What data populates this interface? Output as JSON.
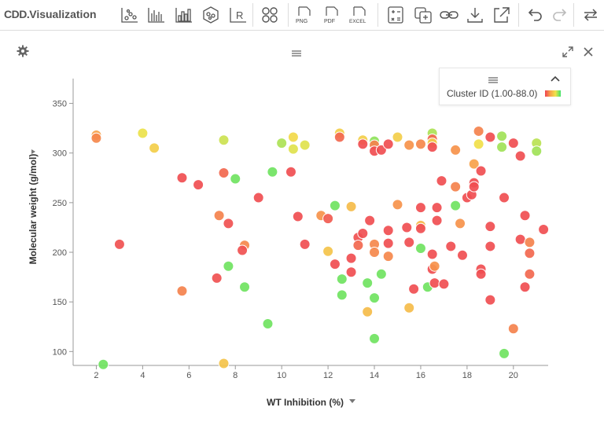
{
  "app": {
    "brand": "CDD.",
    "title": "Visualization"
  },
  "toolbar": {
    "icons": [
      "scatter-plot-icon",
      "bar-chart-icon",
      "histogram-icon",
      "molecule-icon",
      "r-script-icon",
      "cluster-icon",
      "png-export-icon",
      "pdf-export-icon",
      "excel-export-icon",
      "calculator-icon",
      "add-copy-icon",
      "link-icon",
      "download-icon",
      "open-external-icon",
      "undo-icon",
      "redo-icon",
      "refresh-icon"
    ],
    "r_label": "R",
    "png_label": "PNG",
    "pdf_label": "PDF",
    "excel_label": "EXCEL"
  },
  "legend": {
    "label": "Cluster ID (1.00-88.0)",
    "gradient": [
      "#ef4452",
      "#f7a24a",
      "#f1e24a",
      "#3fe36a"
    ]
  },
  "chart_data": {
    "type": "scatter",
    "xlabel": "WT Inhibition (%)",
    "ylabel": "Molecular weight (g/mol)",
    "xlim": [
      1,
      21.5
    ],
    "ylim": [
      86,
      375
    ],
    "xticks": [
      2,
      4,
      6,
      8,
      10,
      12,
      14,
      16,
      18,
      20
    ],
    "yticks": [
      100,
      150,
      200,
      250,
      300,
      350
    ],
    "color_scale": {
      "label": "Cluster ID",
      "range": [
        1,
        88
      ],
      "colors": [
        "#ef4452",
        "#f7a24a",
        "#f1e24a",
        "#3fe36a"
      ]
    },
    "points": [
      {
        "x": 2.0,
        "y": 318,
        "c": 30
      },
      {
        "x": 2.0,
        "y": 315,
        "c": 22
      },
      {
        "x": 2.3,
        "y": 87,
        "c": 80
      },
      {
        "x": 3.0,
        "y": 208,
        "c": 5
      },
      {
        "x": 4.0,
        "y": 320,
        "c": 60
      },
      {
        "x": 4.5,
        "y": 305,
        "c": 50
      },
      {
        "x": 5.7,
        "y": 275,
        "c": 4
      },
      {
        "x": 5.7,
        "y": 161,
        "c": 20
      },
      {
        "x": 6.4,
        "y": 268,
        "c": 4
      },
      {
        "x": 7.3,
        "y": 237,
        "c": 20
      },
      {
        "x": 7.2,
        "y": 174,
        "c": 5
      },
      {
        "x": 7.5,
        "y": 313,
        "c": 65
      },
      {
        "x": 7.5,
        "y": 280,
        "c": 12
      },
      {
        "x": 7.5,
        "y": 88,
        "c": 45
      },
      {
        "x": 7.7,
        "y": 229,
        "c": 5
      },
      {
        "x": 7.7,
        "y": 186,
        "c": 80
      },
      {
        "x": 8.0,
        "y": 274,
        "c": 80
      },
      {
        "x": 8.4,
        "y": 207,
        "c": 22
      },
      {
        "x": 8.3,
        "y": 202,
        "c": 5
      },
      {
        "x": 8.4,
        "y": 165,
        "c": 80
      },
      {
        "x": 9.0,
        "y": 255,
        "c": 4
      },
      {
        "x": 9.4,
        "y": 128,
        "c": 80
      },
      {
        "x": 9.6,
        "y": 281,
        "c": 80
      },
      {
        "x": 10.0,
        "y": 310,
        "c": 70
      },
      {
        "x": 10.4,
        "y": 281,
        "c": 4
      },
      {
        "x": 10.5,
        "y": 316,
        "c": 55
      },
      {
        "x": 10.5,
        "y": 304,
        "c": 62
      },
      {
        "x": 10.7,
        "y": 236,
        "c": 4
      },
      {
        "x": 11.0,
        "y": 308,
        "c": 62
      },
      {
        "x": 11.0,
        "y": 208,
        "c": 4
      },
      {
        "x": 11.7,
        "y": 237,
        "c": 25
      },
      {
        "x": 12.0,
        "y": 234,
        "c": 8
      },
      {
        "x": 12.0,
        "y": 201,
        "c": 45
      },
      {
        "x": 12.3,
        "y": 247,
        "c": 80
      },
      {
        "x": 12.3,
        "y": 188,
        "c": 4
      },
      {
        "x": 12.5,
        "y": 320,
        "c": 50
      },
      {
        "x": 12.5,
        "y": 316,
        "c": 12
      },
      {
        "x": 12.6,
        "y": 173,
        "c": 80
      },
      {
        "x": 12.6,
        "y": 157,
        "c": 80
      },
      {
        "x": 13.0,
        "y": 246,
        "c": 42
      },
      {
        "x": 13.0,
        "y": 194,
        "c": 4
      },
      {
        "x": 13.0,
        "y": 180,
        "c": 4
      },
      {
        "x": 13.3,
        "y": 215,
        "c": 5
      },
      {
        "x": 13.3,
        "y": 207,
        "c": 12
      },
      {
        "x": 13.5,
        "y": 219,
        "c": 4
      },
      {
        "x": 13.5,
        "y": 313,
        "c": 50
      },
      {
        "x": 13.5,
        "y": 309,
        "c": 4
      },
      {
        "x": 13.7,
        "y": 169,
        "c": 80
      },
      {
        "x": 13.7,
        "y": 140,
        "c": 42
      },
      {
        "x": 13.8,
        "y": 232,
        "c": 4
      },
      {
        "x": 14.0,
        "y": 312,
        "c": 75
      },
      {
        "x": 14.0,
        "y": 308,
        "c": 20
      },
      {
        "x": 14.0,
        "y": 302,
        "c": 4
      },
      {
        "x": 14.0,
        "y": 208,
        "c": 22
      },
      {
        "x": 14.0,
        "y": 200,
        "c": 22
      },
      {
        "x": 14.0,
        "y": 154,
        "c": 80
      },
      {
        "x": 14.0,
        "y": 113,
        "c": 80
      },
      {
        "x": 14.3,
        "y": 303,
        "c": 4
      },
      {
        "x": 14.3,
        "y": 178,
        "c": 80
      },
      {
        "x": 14.6,
        "y": 309,
        "c": 4
      },
      {
        "x": 14.6,
        "y": 222,
        "c": 4
      },
      {
        "x": 14.6,
        "y": 209,
        "c": 4
      },
      {
        "x": 14.6,
        "y": 196,
        "c": 22
      },
      {
        "x": 15.0,
        "y": 316,
        "c": 50
      },
      {
        "x": 15.0,
        "y": 248,
        "c": 25
      },
      {
        "x": 15.4,
        "y": 225,
        "c": 4
      },
      {
        "x": 15.5,
        "y": 308,
        "c": 25
      },
      {
        "x": 15.5,
        "y": 210,
        "c": 4
      },
      {
        "x": 15.5,
        "y": 144,
        "c": 42
      },
      {
        "x": 15.7,
        "y": 163,
        "c": 4
      },
      {
        "x": 16.0,
        "y": 309,
        "c": 22
      },
      {
        "x": 16.0,
        "y": 245,
        "c": 4
      },
      {
        "x": 16.0,
        "y": 227,
        "c": 40
      },
      {
        "x": 16.0,
        "y": 224,
        "c": 4
      },
      {
        "x": 16.0,
        "y": 204,
        "c": 80
      },
      {
        "x": 16.3,
        "y": 165,
        "c": 80
      },
      {
        "x": 16.5,
        "y": 320,
        "c": 70
      },
      {
        "x": 16.5,
        "y": 314,
        "c": 12
      },
      {
        "x": 16.5,
        "y": 310,
        "c": 50
      },
      {
        "x": 16.5,
        "y": 306,
        "c": 4
      },
      {
        "x": 16.5,
        "y": 198,
        "c": 4
      },
      {
        "x": 16.5,
        "y": 183,
        "c": 4
      },
      {
        "x": 16.6,
        "y": 186,
        "c": 25
      },
      {
        "x": 16.6,
        "y": 169,
        "c": 4
      },
      {
        "x": 16.7,
        "y": 245,
        "c": 4
      },
      {
        "x": 16.7,
        "y": 232,
        "c": 4
      },
      {
        "x": 16.9,
        "y": 272,
        "c": 4
      },
      {
        "x": 17.0,
        "y": 168,
        "c": 4
      },
      {
        "x": 17.3,
        "y": 206,
        "c": 4
      },
      {
        "x": 17.5,
        "y": 303,
        "c": 25
      },
      {
        "x": 17.5,
        "y": 266,
        "c": 20
      },
      {
        "x": 17.5,
        "y": 247,
        "c": 80
      },
      {
        "x": 17.7,
        "y": 229,
        "c": 25
      },
      {
        "x": 17.8,
        "y": 197,
        "c": 4
      },
      {
        "x": 18.0,
        "y": 255,
        "c": 4
      },
      {
        "x": 18.2,
        "y": 258,
        "c": 4
      },
      {
        "x": 18.3,
        "y": 289,
        "c": 30
      },
      {
        "x": 18.3,
        "y": 270,
        "c": 4
      },
      {
        "x": 18.3,
        "y": 266,
        "c": 4
      },
      {
        "x": 18.5,
        "y": 322,
        "c": 20
      },
      {
        "x": 18.5,
        "y": 309,
        "c": 58
      },
      {
        "x": 18.6,
        "y": 282,
        "c": 4
      },
      {
        "x": 18.6,
        "y": 183,
        "c": 4
      },
      {
        "x": 18.6,
        "y": 178,
        "c": 4
      },
      {
        "x": 19.0,
        "y": 316,
        "c": 4
      },
      {
        "x": 19.0,
        "y": 226,
        "c": 4
      },
      {
        "x": 19.0,
        "y": 206,
        "c": 4
      },
      {
        "x": 19.0,
        "y": 152,
        "c": 4
      },
      {
        "x": 19.5,
        "y": 317,
        "c": 72
      },
      {
        "x": 19.5,
        "y": 306,
        "c": 72
      },
      {
        "x": 19.6,
        "y": 255,
        "c": 4
      },
      {
        "x": 19.6,
        "y": 98,
        "c": 80
      },
      {
        "x": 20.0,
        "y": 310,
        "c": 4
      },
      {
        "x": 20.0,
        "y": 123,
        "c": 20
      },
      {
        "x": 20.3,
        "y": 297,
        "c": 4
      },
      {
        "x": 20.3,
        "y": 213,
        "c": 4
      },
      {
        "x": 20.5,
        "y": 237,
        "c": 4
      },
      {
        "x": 20.5,
        "y": 165,
        "c": 4
      },
      {
        "x": 20.7,
        "y": 210,
        "c": 20
      },
      {
        "x": 20.7,
        "y": 199,
        "c": 12
      },
      {
        "x": 20.7,
        "y": 178,
        "c": 12
      },
      {
        "x": 21.0,
        "y": 310,
        "c": 68
      },
      {
        "x": 21.0,
        "y": 302,
        "c": 72
      },
      {
        "x": 21.3,
        "y": 223,
        "c": 4
      }
    ]
  }
}
